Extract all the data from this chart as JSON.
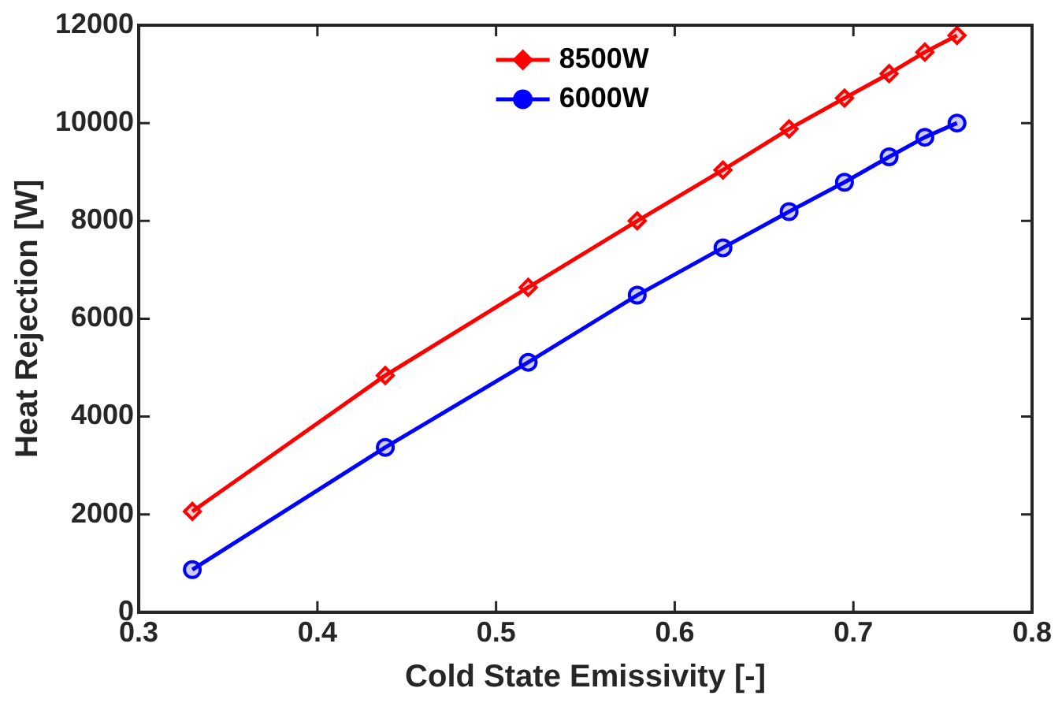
{
  "chart_data": {
    "type": "line",
    "xlabel": "Cold State Emissivity [-]",
    "ylabel": "Heat Rejection [W]",
    "x": [
      0.33,
      0.438,
      0.518,
      0.579,
      0.627,
      0.664,
      0.695,
      0.72,
      0.74,
      0.758
    ],
    "series": [
      {
        "name": "8500W",
        "color": "#ff0000",
        "marker": "diamond",
        "values": [
          2060,
          4840,
          6640,
          8000,
          9040,
          9880,
          10510,
          11010,
          11450,
          11790
        ]
      },
      {
        "name": "6000W",
        "color": "#0000ff",
        "marker": "circle",
        "values": [
          870,
          3370,
          5110,
          6480,
          7450,
          8190,
          8790,
          9310,
          9710,
          10000
        ]
      }
    ],
    "xlim": [
      0.3,
      0.8
    ],
    "xticks": [
      0.3,
      0.4,
      0.5,
      0.6,
      0.7,
      0.8
    ],
    "ylim": [
      0,
      12000
    ],
    "yticks": [
      0,
      2000,
      4000,
      6000,
      8000,
      10000,
      12000
    ],
    "grid": false,
    "legend": "top",
    "line_style": "solid"
  }
}
